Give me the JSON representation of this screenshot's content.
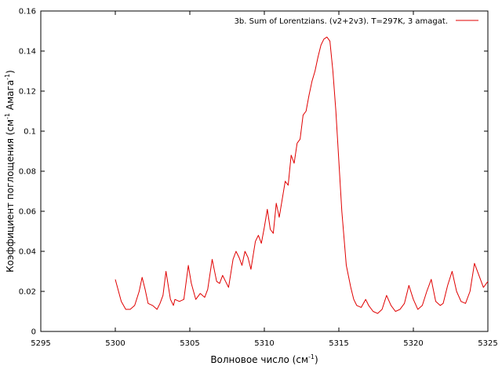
{
  "chart_data": {
    "type": "line",
    "title": "",
    "xlabel": {
      "main": "Волновое число (см",
      "sup": "-1",
      "tail": ")"
    },
    "ylabel": {
      "main": "Коэффициент поглощения (см",
      "sup": "-1",
      "tail": " Амага",
      "sup2": "-1",
      "tail2": ")"
    },
    "xlim": [
      5295,
      5325
    ],
    "ylim": [
      0,
      0.16
    ],
    "xticks": [
      "5295",
      "5300",
      "5305",
      "5310",
      "5315",
      "5320",
      "5325"
    ],
    "yticks": [
      "0",
      "0.02",
      "0.04",
      "0.06",
      "0.08",
      "0.1",
      "0.12",
      "0.14",
      "0.16"
    ],
    "grid": false,
    "legend_position": "top-right",
    "colors": {
      "line": "#e00000",
      "axis": "#000000"
    },
    "series": [
      {
        "name": "3b. Sum of Lorentzians. (v2+2v3). T=297K, 3 amagat.",
        "x": [
          5300.0,
          5300.4,
          5300.7,
          5301.0,
          5301.3,
          5301.6,
          5301.8,
          5302.0,
          5302.2,
          5302.5,
          5302.8,
          5303.0,
          5303.2,
          5303.4,
          5303.7,
          5303.9,
          5304.0,
          5304.3,
          5304.6,
          5304.9,
          5305.1,
          5305.4,
          5305.7,
          5306.0,
          5306.2,
          5306.5,
          5306.8,
          5307.0,
          5307.2,
          5307.4,
          5307.6,
          5307.9,
          5308.1,
          5308.3,
          5308.5,
          5308.7,
          5308.9,
          5309.1,
          5309.4,
          5309.6,
          5309.8,
          5310.0,
          5310.2,
          5310.4,
          5310.6,
          5310.8,
          5311.0,
          5311.2,
          5311.4,
          5311.6,
          5311.8,
          5312.0,
          5312.2,
          5312.4,
          5312.6,
          5312.8,
          5313.0,
          5313.2,
          5313.4,
          5313.6,
          5313.8,
          5314.0,
          5314.2,
          5314.4,
          5314.6,
          5314.8,
          5315.0,
          5315.2,
          5315.5,
          5315.8,
          5316.0,
          5316.2,
          5316.5,
          5316.8,
          5317.0,
          5317.3,
          5317.6,
          5317.9,
          5318.2,
          5318.5,
          5318.8,
          5319.1,
          5319.4,
          5319.7,
          5320.0,
          5320.3,
          5320.6,
          5320.9,
          5321.2,
          5321.5,
          5321.8,
          5322.0,
          5322.3,
          5322.6,
          5322.9,
          5323.2,
          5323.5,
          5323.8,
          5324.1,
          5324.4,
          5324.7,
          5325.0
        ],
        "y": [
          0.026,
          0.015,
          0.011,
          0.011,
          0.013,
          0.02,
          0.027,
          0.021,
          0.014,
          0.013,
          0.011,
          0.014,
          0.018,
          0.03,
          0.016,
          0.013,
          0.016,
          0.015,
          0.016,
          0.033,
          0.024,
          0.016,
          0.019,
          0.017,
          0.021,
          0.036,
          0.025,
          0.024,
          0.028,
          0.025,
          0.022,
          0.036,
          0.04,
          0.037,
          0.033,
          0.04,
          0.037,
          0.031,
          0.045,
          0.048,
          0.044,
          0.052,
          0.061,
          0.051,
          0.049,
          0.064,
          0.057,
          0.066,
          0.075,
          0.073,
          0.088,
          0.084,
          0.094,
          0.096,
          0.108,
          0.11,
          0.118,
          0.125,
          0.13,
          0.137,
          0.143,
          0.146,
          0.147,
          0.145,
          0.13,
          0.11,
          0.085,
          0.06,
          0.033,
          0.022,
          0.016,
          0.013,
          0.012,
          0.016,
          0.013,
          0.01,
          0.009,
          0.011,
          0.018,
          0.013,
          0.01,
          0.011,
          0.014,
          0.023,
          0.016,
          0.011,
          0.013,
          0.02,
          0.026,
          0.015,
          0.013,
          0.014,
          0.023,
          0.03,
          0.02,
          0.015,
          0.014,
          0.02,
          0.034,
          0.028,
          0.022,
          0.025
        ]
      }
    ]
  }
}
